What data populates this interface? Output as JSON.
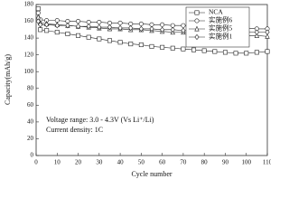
{
  "chart_data": {
    "type": "line",
    "x_label": "Cycle number",
    "y_label": "Capacity(mAh/g)",
    "annotations": [
      "Voltage range: 3.0 - 4.3V (Vs Li⁺/Li)",
      "Current density: 1C"
    ],
    "x": [
      1,
      2,
      5,
      10,
      15,
      20,
      25,
      30,
      35,
      40,
      45,
      50,
      55,
      60,
      65,
      70,
      75,
      80,
      85,
      90,
      95,
      100,
      105,
      110
    ],
    "series": [
      {
        "name": "NCA",
        "color": "#222222",
        "marker": "square",
        "values": [
          175,
          150,
          149,
          147,
          145,
          143,
          141,
          139,
          137,
          135,
          133,
          132,
          130,
          129,
          128,
          127,
          126,
          125,
          124,
          123,
          122,
          122,
          123,
          124
        ]
      },
      {
        "name": "实施例6",
        "color": "#222222",
        "marker": "circle",
        "values": [
          170,
          162,
          161,
          161,
          160,
          160,
          159,
          159,
          158,
          158,
          157,
          157,
          156,
          156,
          155,
          155,
          154,
          154,
          153,
          153,
          152,
          152,
          151,
          151
        ]
      },
      {
        "name": "实施例5",
        "color": "#222222",
        "marker": "triangle",
        "values": [
          165,
          158,
          157,
          156,
          155,
          154,
          153,
          152,
          151,
          151,
          150,
          150,
          149,
          148,
          147,
          147,
          146,
          145,
          145,
          144,
          144,
          143,
          143,
          142
        ]
      },
      {
        "name": "实施例1",
        "color": "#222222",
        "marker": "diamond",
        "values": [
          160,
          156,
          156,
          155,
          155,
          154,
          154,
          153,
          153,
          152,
          152,
          151,
          151,
          150,
          150,
          149,
          149,
          149,
          148,
          148,
          147,
          147,
          147,
          147
        ]
      }
    ],
    "xlim": [
      0,
      110
    ],
    "xticks": [
      0,
      10,
      20,
      30,
      40,
      50,
      60,
      70,
      80,
      90,
      100,
      110
    ],
    "ylim": [
      0,
      180
    ],
    "yticks": [
      0,
      20,
      40,
      60,
      80,
      100,
      120,
      140,
      160,
      180
    ],
    "grid": false,
    "legend": "upper right"
  }
}
